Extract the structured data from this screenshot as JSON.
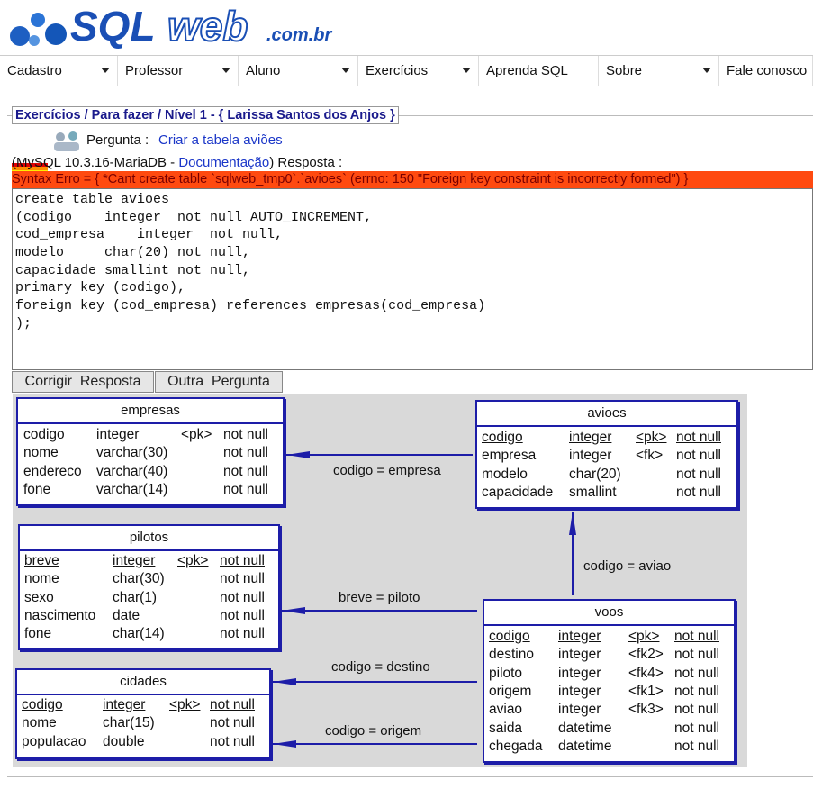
{
  "header": {
    "logo": {
      "sql": "SQL",
      "web": "web",
      "domain": ".com.br"
    }
  },
  "nav": [
    {
      "label": "Cadastro",
      "dropdown": true
    },
    {
      "label": "Professor",
      "dropdown": true
    },
    {
      "label": "Aluno",
      "dropdown": true
    },
    {
      "label": "Exercícios",
      "dropdown": true
    },
    {
      "label": "Aprenda SQL"
    },
    {
      "label": "Sobre",
      "dropdown": true
    },
    {
      "label": "Fale conosco"
    }
  ],
  "exercise": {
    "legend": "Exercícios / Para fazer / Nível 1 - { Larissa Santos dos Anjos }",
    "question_label": "Pergunta :",
    "question_link": "Criar a tabela aviões",
    "info_prefix": "(MySQL 10.3.16-MariaDB -",
    "info_link": "Documentação",
    "info_suffix": ") Resposta :",
    "error": "Syntax Erro = { *Cant create table `sqlweb_tmp0`.`avioes` (errno: 150 \"Foreign key constraint is incorrectly formed\") }",
    "answer_lines": [
      "create table avioes",
      "(codigo    integer  not null AUTO_INCREMENT,",
      "cod_empresa    integer  not null,",
      "modelo     char(20) not null,",
      "capacidade smallint not null,",
      "primary key (codigo),",
      "foreign key (cod_empresa) references empresas(cod_empresa)",
      ");"
    ],
    "buttons": [
      "Corrigir  Resposta",
      "Outra  Pergunta"
    ]
  },
  "diagram": {
    "tables": [
      {
        "name": "empresas",
        "columns": [
          {
            "name": "codigo",
            "type": "integer",
            "key": "<pk>",
            "null": "not null"
          },
          {
            "name": "nome",
            "type": "varchar(30)",
            "null": "not null"
          },
          {
            "name": "endereco",
            "type": "varchar(40)",
            "null": "not null"
          },
          {
            "name": "fone",
            "type": "varchar(14)",
            "null": "not null"
          }
        ]
      },
      {
        "name": "avioes",
        "columns": [
          {
            "name": "codigo",
            "type": "integer",
            "key": "<pk>",
            "null": "not null"
          },
          {
            "name": "empresa",
            "type": "integer",
            "key": "<fk>",
            "null": "not null"
          },
          {
            "name": "modelo",
            "type": "char(20)",
            "null": "not null"
          },
          {
            "name": "capacidade",
            "type": "smallint",
            "null": "not null"
          }
        ]
      },
      {
        "name": "pilotos",
        "columns": [
          {
            "name": "breve",
            "type": "integer",
            "key": "<pk>",
            "null": "not null"
          },
          {
            "name": "nome",
            "type": "char(30)",
            "null": "not null"
          },
          {
            "name": "sexo",
            "type": "char(1)",
            "null": "not null"
          },
          {
            "name": "nascimento",
            "type": "date",
            "null": "not null"
          },
          {
            "name": "fone",
            "type": "char(14)",
            "null": "not null"
          }
        ]
      },
      {
        "name": "voos",
        "columns": [
          {
            "name": "codigo",
            "type": "integer",
            "key": "<pk>",
            "null": "not null"
          },
          {
            "name": "destino",
            "type": "integer",
            "key": "<fk2>",
            "null": "not null"
          },
          {
            "name": "piloto",
            "type": "integer",
            "key": "<fk4>",
            "null": "not null"
          },
          {
            "name": "origem",
            "type": "integer",
            "key": "<fk1>",
            "null": "not null"
          },
          {
            "name": "aviao",
            "type": "integer",
            "key": "<fk3>",
            "null": "not null"
          },
          {
            "name": "saida",
            "type": "datetime",
            "null": "not null"
          },
          {
            "name": "chegada",
            "type": "datetime",
            "null": "not null"
          }
        ]
      },
      {
        "name": "cidades",
        "columns": [
          {
            "name": "codigo",
            "type": "integer",
            "key": "<pk>",
            "null": "not null"
          },
          {
            "name": "nome",
            "type": "char(15)",
            "null": "not null"
          },
          {
            "name": "populacao",
            "type": "double",
            "null": "not null"
          }
        ]
      }
    ],
    "relations": [
      "codigo = empresa",
      "codigo = aviao",
      "breve = piloto",
      "codigo = destino",
      "codigo = origem"
    ]
  }
}
